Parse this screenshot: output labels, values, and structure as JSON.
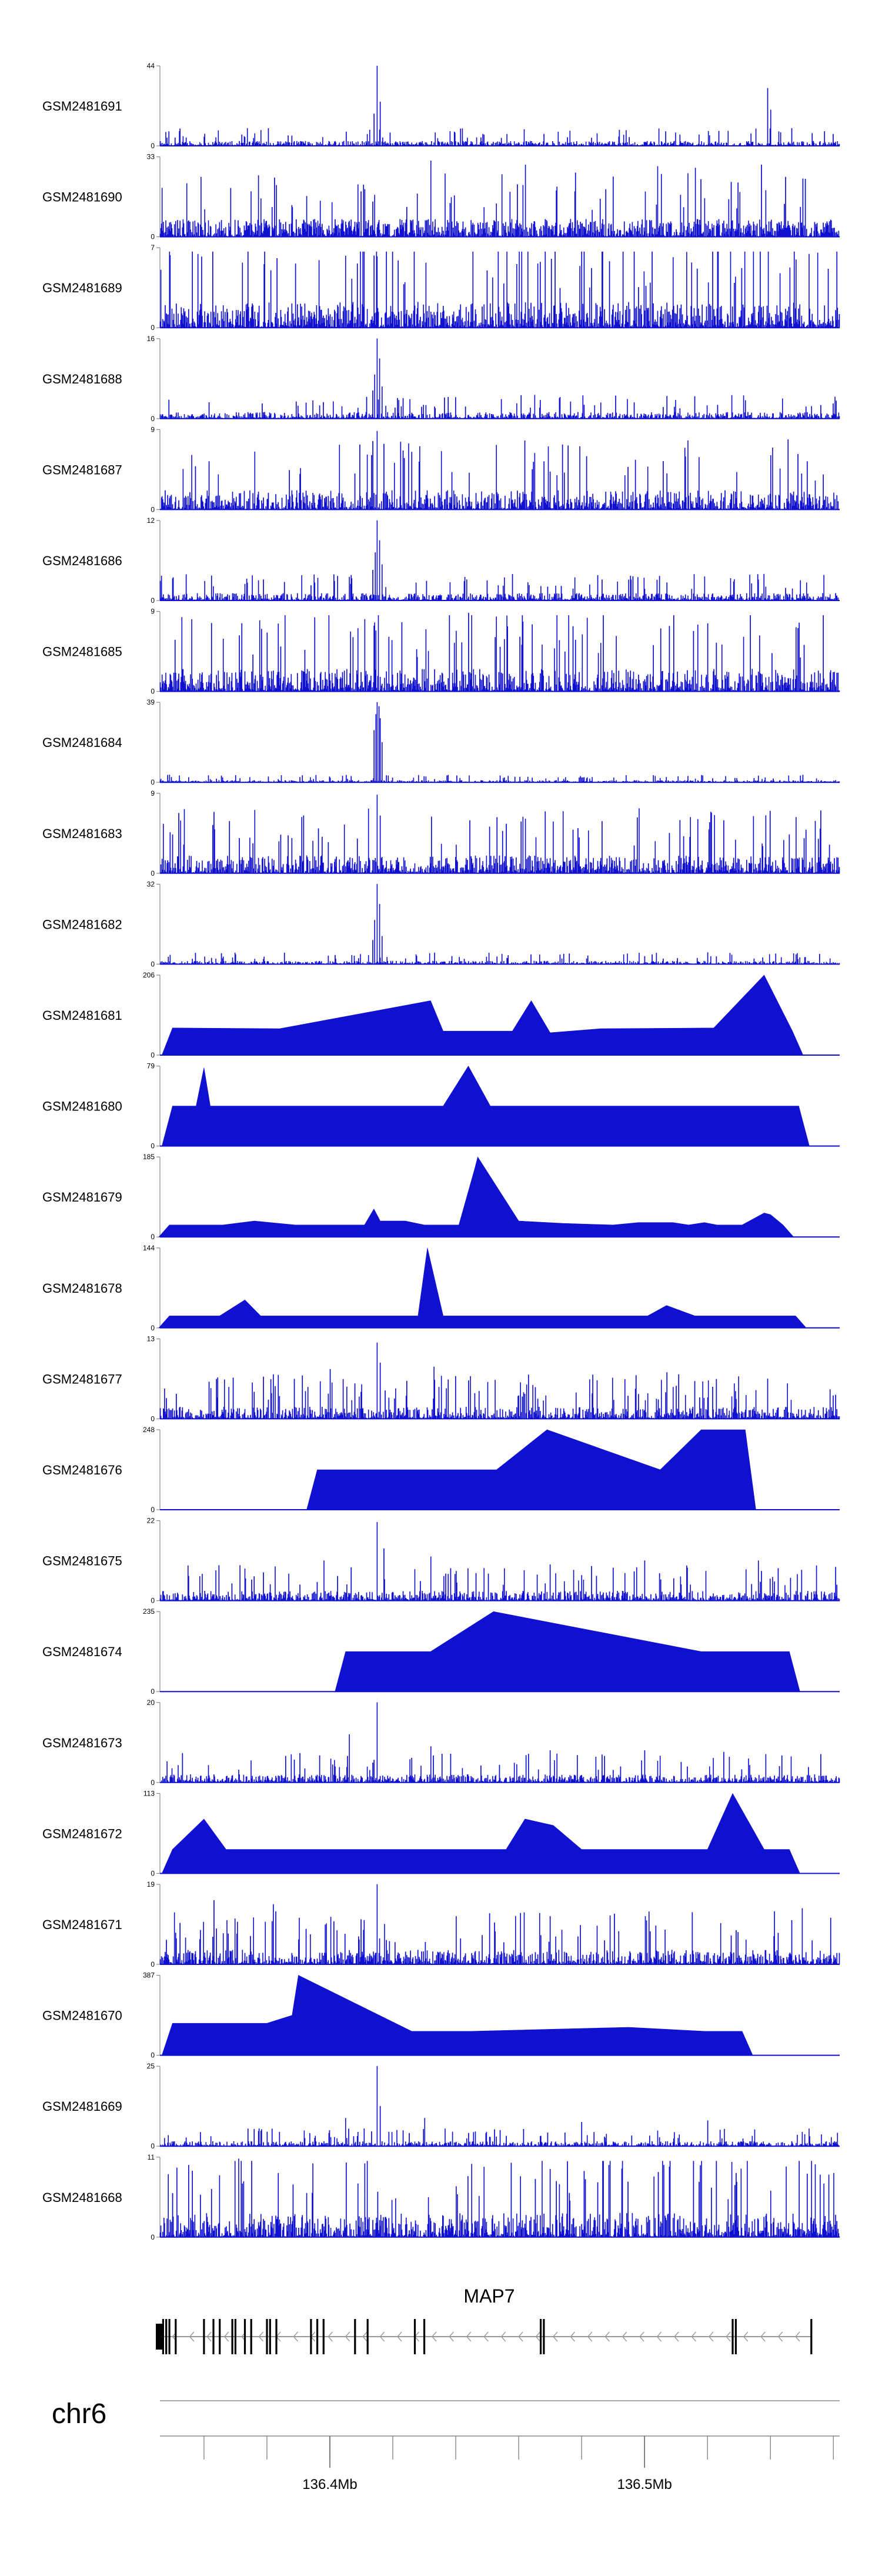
{
  "chart_data": {
    "type": "area",
    "genome": {
      "chromosome": "chr6",
      "start_mb": 136.346,
      "end_mb": 136.562,
      "major_ticks": [
        {
          "mb": 136.4,
          "label": "136.4Mb"
        },
        {
          "mb": 136.5,
          "label": "136.5Mb"
        }
      ],
      "minor_tick_step_mb": 0.02
    },
    "gene": {
      "name": "MAP7",
      "start_mb": 136.346,
      "end_mb": 136.553,
      "strand": "-",
      "exons_mb": [
        136.346,
        136.347,
        136.348,
        136.349,
        136.351,
        136.36,
        136.363,
        136.365,
        136.369,
        136.37,
        136.373,
        136.375,
        136.38,
        136.381,
        136.383,
        136.394,
        136.396,
        136.398,
        136.408,
        136.412,
        136.427,
        136.43,
        136.467,
        136.468,
        136.528,
        136.529,
        136.553
      ]
    },
    "color": "#1010d0",
    "tracks": [
      {
        "name": "GSM2481691",
        "ymax": 44,
        "style": "dense",
        "baseline": 0.06,
        "peaks": [
          [
            136.415,
            1.0
          ],
          [
            136.416,
            0.55
          ],
          [
            136.414,
            0.4
          ],
          [
            136.539,
            0.72
          ],
          [
            136.54,
            0.45
          ]
        ]
      },
      {
        "name": "GSM2481690",
        "ymax": 33,
        "style": "mixed",
        "baseline": 0.22,
        "peaks": [
          [
            136.432,
            0.95
          ],
          [
            136.462,
            0.9
          ],
          [
            136.504,
            0.88
          ],
          [
            136.516,
            0.86
          ],
          [
            136.537,
            0.9
          ],
          [
            136.478,
            0.8
          ],
          [
            136.49,
            0.75
          ]
        ]
      },
      {
        "name": "GSM2481689",
        "ymax": 7,
        "style": "dense",
        "baseline": 0.32,
        "peaks": [
          [
            136.358,
            0.92
          ],
          [
            136.414,
            0.9
          ],
          [
            136.466,
            0.8
          ],
          [
            136.509,
            0.88
          ],
          [
            136.548,
            0.85
          ],
          [
            136.389,
            0.8
          ]
        ]
      },
      {
        "name": "GSM2481688",
        "ymax": 16,
        "style": "dense",
        "baseline": 0.08,
        "peaks": [
          [
            136.415,
            1.0
          ],
          [
            136.4158,
            0.75
          ],
          [
            136.4142,
            0.55
          ],
          [
            136.4135,
            0.35
          ],
          [
            136.4165,
            0.4
          ]
        ]
      },
      {
        "name": "GSM2481687",
        "ymax": 9,
        "style": "dense",
        "baseline": 0.24,
        "peaks": [
          [
            136.415,
            0.98
          ],
          [
            136.417,
            0.82
          ],
          [
            136.356,
            0.68
          ],
          [
            136.426,
            0.72
          ],
          [
            136.468,
            0.6
          ],
          [
            136.497,
            0.62
          ]
        ]
      },
      {
        "name": "GSM2481686",
        "ymax": 12,
        "style": "dense",
        "baseline": 0.09,
        "peaks": [
          [
            136.415,
            1.0
          ],
          [
            136.4158,
            0.75
          ],
          [
            136.4143,
            0.6
          ],
          [
            136.4165,
            0.45
          ],
          [
            136.4135,
            0.38
          ]
        ]
      },
      {
        "name": "GSM2481685",
        "ymax": 9,
        "style": "dense",
        "baseline": 0.28,
        "peaks": [
          [
            136.444,
            0.98
          ],
          [
            136.356,
            0.9
          ],
          [
            136.372,
            0.85
          ],
          [
            136.52,
            0.85
          ],
          [
            136.548,
            0.8
          ],
          [
            136.414,
            0.82
          ]
        ]
      },
      {
        "name": "GSM2481684",
        "ymax": 39,
        "style": "dense",
        "baseline": 0.025,
        "peaks": [
          [
            136.415,
            1.0
          ],
          [
            136.4155,
            0.95
          ],
          [
            136.4145,
            0.85
          ],
          [
            136.416,
            0.8
          ],
          [
            136.414,
            0.65
          ],
          [
            136.4165,
            0.5
          ]
        ]
      },
      {
        "name": "GSM2481683",
        "ymax": 9,
        "style": "dense",
        "baseline": 0.22,
        "peaks": [
          [
            136.415,
            0.98
          ],
          [
            136.416,
            0.72
          ],
          [
            136.368,
            0.65
          ],
          [
            136.462,
            0.68
          ],
          [
            136.525,
            0.66
          ],
          [
            136.548,
            0.7
          ]
        ]
      },
      {
        "name": "GSM2481682",
        "ymax": 32,
        "style": "dense",
        "baseline": 0.04,
        "peaks": [
          [
            136.415,
            1.0
          ],
          [
            136.4158,
            0.75
          ],
          [
            136.4142,
            0.55
          ],
          [
            136.4165,
            0.35
          ],
          [
            136.4135,
            0.3
          ]
        ]
      },
      {
        "name": "GSM2481681",
        "ymax": 206,
        "style": "triangles",
        "peaks": [
          [
            136.35,
            0.34
          ],
          [
            136.384,
            0.33
          ],
          [
            136.432,
            0.68
          ],
          [
            136.436,
            0.3
          ],
          [
            136.447,
            0.3
          ],
          [
            136.458,
            0.3
          ],
          [
            136.464,
            0.68
          ],
          [
            136.47,
            0.28
          ],
          [
            136.486,
            0.33
          ],
          [
            136.522,
            0.34
          ],
          [
            136.538,
            1.0
          ],
          [
            136.547,
            0.3
          ]
        ]
      },
      {
        "name": "GSM2481680",
        "ymax": 79,
        "style": "triangles",
        "peaks": [
          [
            136.35,
            0.5
          ],
          [
            136.3575,
            0.5
          ],
          [
            136.36,
            0.98
          ],
          [
            136.362,
            0.5
          ],
          [
            136.37,
            0.5
          ],
          [
            136.377,
            0.5
          ],
          [
            136.381,
            0.5
          ],
          [
            136.388,
            0.5
          ],
          [
            136.393,
            0.5
          ],
          [
            136.401,
            0.5
          ],
          [
            136.408,
            0.5
          ],
          [
            136.415,
            0.5
          ],
          [
            136.424,
            0.5
          ],
          [
            136.436,
            0.5
          ],
          [
            136.444,
            1.0
          ],
          [
            136.451,
            0.5
          ],
          [
            136.455,
            0.5
          ],
          [
            136.458,
            0.5
          ],
          [
            136.465,
            0.5
          ],
          [
            136.487,
            0.5
          ],
          [
            136.505,
            0.5
          ],
          [
            136.507,
            0.5
          ],
          [
            136.532,
            0.5
          ],
          [
            136.541,
            0.5
          ],
          [
            136.545,
            0.5
          ],
          [
            136.549,
            0.5
          ]
        ]
      },
      {
        "name": "GSM2481679",
        "ymax": 185,
        "style": "triangles",
        "peaks": [
          [
            136.349,
            0.15
          ],
          [
            136.353,
            0.15
          ],
          [
            136.361,
            0.15
          ],
          [
            136.366,
            0.15
          ],
          [
            136.376,
            0.2
          ],
          [
            136.389,
            0.15
          ],
          [
            136.401,
            0.15
          ],
          [
            136.411,
            0.15
          ],
          [
            136.414,
            0.35
          ],
          [
            136.416,
            0.2
          ],
          [
            136.424,
            0.2
          ],
          [
            136.43,
            0.15
          ],
          [
            136.437,
            0.15
          ],
          [
            136.441,
            0.15
          ],
          [
            136.446,
            0.85
          ],
          [
            136.447,
            1.0
          ],
          [
            136.46,
            0.2
          ],
          [
            136.474,
            0.17
          ],
          [
            136.49,
            0.15
          ],
          [
            136.498,
            0.18
          ],
          [
            136.503,
            0.18
          ],
          [
            136.509,
            0.18
          ],
          [
            136.514,
            0.15
          ],
          [
            136.519,
            0.18
          ],
          [
            136.523,
            0.15
          ],
          [
            136.531,
            0.15
          ],
          [
            136.538,
            0.3
          ],
          [
            136.54,
            0.28
          ],
          [
            136.544,
            0.15
          ]
        ]
      },
      {
        "name": "GSM2481678",
        "ymax": 144,
        "style": "triangles",
        "peaks": [
          [
            136.349,
            0.15
          ],
          [
            136.352,
            0.15
          ],
          [
            136.355,
            0.15
          ],
          [
            136.358,
            0.15
          ],
          [
            136.362,
            0.15
          ],
          [
            136.365,
            0.15
          ],
          [
            136.373,
            0.35
          ],
          [
            136.378,
            0.15
          ],
          [
            136.384,
            0.15
          ],
          [
            136.392,
            0.15
          ],
          [
            136.399,
            0.15
          ],
          [
            136.404,
            0.15
          ],
          [
            136.41,
            0.15
          ],
          [
            136.416,
            0.15
          ],
          [
            136.42,
            0.15
          ],
          [
            136.425,
            0.15
          ],
          [
            136.428,
            0.15
          ],
          [
            136.431,
            1.0
          ],
          [
            136.436,
            0.15
          ],
          [
            136.44,
            0.15
          ],
          [
            136.446,
            0.15
          ],
          [
            136.452,
            0.15
          ],
          [
            136.459,
            0.15
          ],
          [
            136.466,
            0.15
          ],
          [
            136.473,
            0.15
          ],
          [
            136.481,
            0.15
          ],
          [
            136.488,
            0.15
          ],
          [
            136.496,
            0.15
          ],
          [
            136.501,
            0.15
          ],
          [
            136.507,
            0.28
          ],
          [
            136.516,
            0.15
          ],
          [
            136.522,
            0.15
          ],
          [
            136.526,
            0.15
          ],
          [
            136.53,
            0.15
          ],
          [
            136.536,
            0.15
          ],
          [
            136.541,
            0.15
          ],
          [
            136.548,
            0.15
          ]
        ]
      },
      {
        "name": "GSM2481677",
        "ymax": 13,
        "style": "dense",
        "baseline": 0.15,
        "peaks": [
          [
            136.415,
            0.95
          ],
          [
            136.416,
            0.7
          ],
          [
            136.4,
            0.62
          ],
          [
            136.433,
            0.65
          ],
          [
            136.463,
            0.55
          ],
          [
            136.507,
            0.58
          ],
          [
            136.539,
            0.5
          ]
        ]
      },
      {
        "name": "GSM2481676",
        "ymax": 248,
        "style": "triangles",
        "peaks": [
          [
            136.396,
            0.5
          ],
          [
            136.453,
            0.5
          ],
          [
            136.469,
            1.0
          ],
          [
            136.505,
            0.5
          ],
          [
            136.518,
            1.0
          ],
          [
            136.532,
            1.0
          ]
        ]
      },
      {
        "name": "GSM2481675",
        "ymax": 22,
        "style": "dense",
        "baseline": 0.12,
        "peaks": [
          [
            136.415,
            0.98
          ],
          [
            136.417,
            0.65
          ],
          [
            136.398,
            0.5
          ],
          [
            136.432,
            0.55
          ],
          [
            136.47,
            0.45
          ],
          [
            136.5,
            0.5
          ],
          [
            136.536,
            0.5
          ]
        ]
      },
      {
        "name": "GSM2481674",
        "ymax": 235,
        "style": "triangles",
        "peaks": [
          [
            136.405,
            0.5
          ],
          [
            136.418,
            0.5
          ],
          [
            136.432,
            0.5
          ],
          [
            136.452,
            1.0
          ],
          [
            136.518,
            0.5
          ],
          [
            136.521,
            0.5
          ],
          [
            136.533,
            0.5
          ],
          [
            136.546,
            0.5
          ]
        ]
      },
      {
        "name": "GSM2481673",
        "ymax": 20,
        "style": "dense",
        "baseline": 0.1,
        "peaks": [
          [
            136.415,
            1.0
          ],
          [
            136.406,
            0.6
          ],
          [
            136.432,
            0.45
          ],
          [
            136.47,
            0.4
          ],
          [
            136.5,
            0.4
          ],
          [
            136.525,
            0.38
          ]
        ]
      },
      {
        "name": "GSM2481672",
        "ymax": 113,
        "style": "triangles",
        "peaks": [
          [
            136.35,
            0.3
          ],
          [
            136.36,
            0.68
          ],
          [
            136.367,
            0.3
          ],
          [
            136.374,
            0.3
          ],
          [
            136.38,
            0.3
          ],
          [
            136.388,
            0.3
          ],
          [
            136.398,
            0.3
          ],
          [
            136.404,
            0.3
          ],
          [
            136.41,
            0.3
          ],
          [
            136.415,
            0.3
          ],
          [
            136.421,
            0.3
          ],
          [
            136.426,
            0.3
          ],
          [
            136.431,
            0.3
          ],
          [
            136.437,
            0.3
          ],
          [
            136.442,
            0.3
          ],
          [
            136.449,
            0.3
          ],
          [
            136.456,
            0.3
          ],
          [
            136.462,
            0.68
          ],
          [
            136.471,
            0.6
          ],
          [
            136.48,
            0.3
          ],
          [
            136.492,
            0.3
          ],
          [
            136.499,
            0.3
          ],
          [
            136.506,
            0.3
          ],
          [
            136.52,
            0.3
          ],
          [
            136.528,
            1.0
          ],
          [
            136.538,
            0.3
          ],
          [
            136.546,
            0.3
          ]
        ]
      },
      {
        "name": "GSM2481671",
        "ymax": 19,
        "style": "dense",
        "baseline": 0.18,
        "peaks": [
          [
            136.415,
            1.0
          ],
          [
            136.363,
            0.8
          ],
          [
            136.382,
            0.75
          ],
          [
            136.44,
            0.6
          ],
          [
            136.47,
            0.6
          ],
          [
            136.515,
            0.65
          ],
          [
            136.55,
            0.7
          ]
        ]
      },
      {
        "name": "GSM2481670",
        "ymax": 387,
        "style": "triangles",
        "peaks": [
          [
            136.35,
            0.4
          ],
          [
            136.38,
            0.4
          ],
          [
            136.388,
            0.5
          ],
          [
            136.39,
            1.0
          ],
          [
            136.426,
            0.3
          ],
          [
            136.445,
            0.3
          ],
          [
            136.495,
            0.35
          ],
          [
            136.519,
            0.3
          ],
          [
            136.531,
            0.3
          ]
        ]
      },
      {
        "name": "GSM2481669",
        "ymax": 25,
        "style": "dense",
        "baseline": 0.06,
        "peaks": [
          [
            136.415,
            1.0
          ],
          [
            136.416,
            0.5
          ],
          [
            136.405,
            0.35
          ],
          [
            136.43,
            0.35
          ],
          [
            136.48,
            0.3
          ],
          [
            136.52,
            0.32
          ]
        ]
      },
      {
        "name": "GSM2481668",
        "ymax": 11,
        "style": "dense",
        "baseline": 0.3,
        "peaks": [
          [
            136.371,
            0.98
          ],
          [
            136.355,
            0.9
          ],
          [
            136.411,
            0.92
          ],
          [
            136.47,
            0.85
          ],
          [
            136.506,
            0.9
          ],
          [
            136.545,
            0.88
          ]
        ]
      }
    ]
  }
}
